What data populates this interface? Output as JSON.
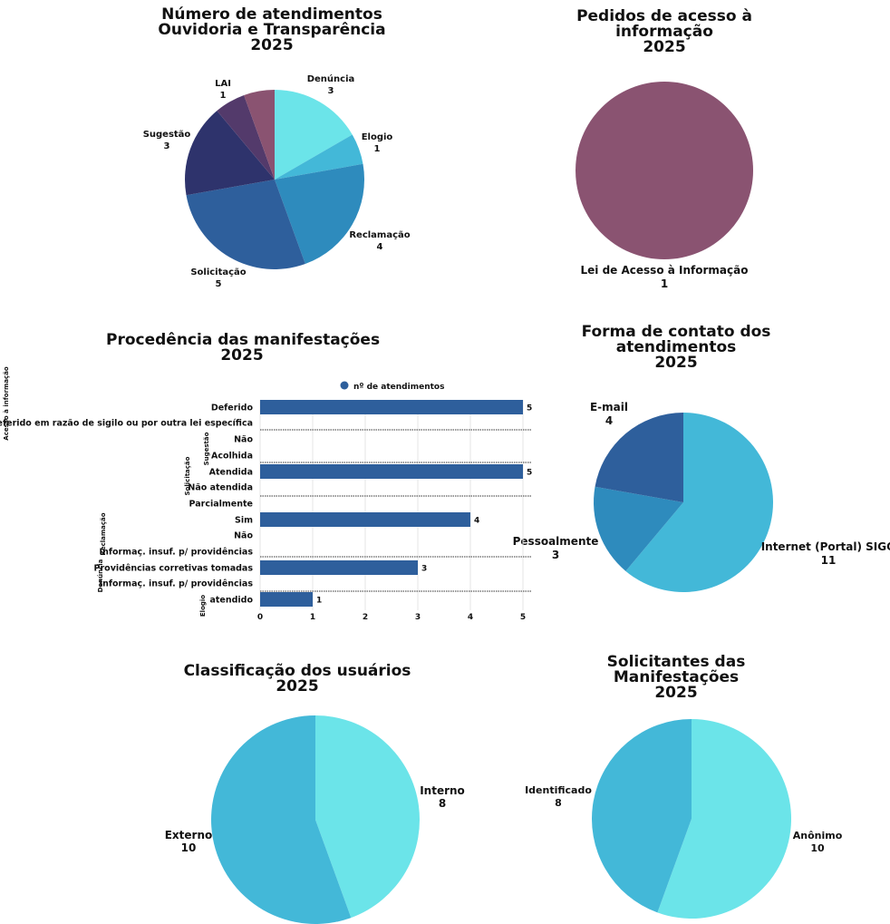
{
  "chart_data": [
    {
      "type": "pie",
      "title_lines": [
        "Número de atendimentos",
        "Ouvidoria e Transparência",
        "2025"
      ],
      "slices": [
        {
          "label": "Denúncia",
          "value": 3,
          "color": "#6be4e9"
        },
        {
          "label": "Elogio",
          "value": 1,
          "color": "#43b8d8"
        },
        {
          "label": "Reclamação",
          "value": 4,
          "color": "#2e8bbd"
        },
        {
          "label": "Solicitação",
          "value": 5,
          "color": "#2e5f9c"
        },
        {
          "label": "Sugestão",
          "value": 3,
          "color": "#2e336c"
        },
        {
          "label": "LAI",
          "value": 1,
          "color": "#533a6b"
        },
        {
          "label": "",
          "value": 1,
          "color": "#8a5371"
        }
      ]
    },
    {
      "type": "pie",
      "title_lines": [
        "Pedidos de acesso à",
        "informação",
        "2025"
      ],
      "slices": [
        {
          "label": "Lei de Acesso à Informação",
          "value": 1,
          "color": "#8a5371"
        }
      ]
    },
    {
      "type": "bar",
      "orientation": "horizontal",
      "title_lines": [
        "Procedência das manifestações",
        "2025"
      ],
      "legend": "nº de atendimentos",
      "series_color": "#2e5f9c",
      "xlim": [
        0,
        5
      ],
      "xticks": [
        0,
        1,
        2,
        3,
        4,
        5
      ],
      "groups": [
        {
          "name": "Acesso à informação",
          "rows": [
            {
              "label": "Deferido",
              "value": 5
            },
            {
              "label": "Indeferido em razão de sigilo ou por outra lei específica",
              "value": null
            }
          ]
        },
        {
          "name": "Sugestão",
          "rows": [
            {
              "label": "Não",
              "value": null
            },
            {
              "label": "Acolhida",
              "value": null
            }
          ]
        },
        {
          "name": "Solicitação",
          "rows": [
            {
              "label": "Atendida",
              "value": 5
            },
            {
              "label": "Não atendida",
              "value": null
            }
          ]
        },
        {
          "name": "Reclamação",
          "rows": [
            {
              "label": "Parcialmente",
              "value": null
            },
            {
              "label": "Sim",
              "value": 4
            },
            {
              "label": "Não",
              "value": null
            },
            {
              "label": "Informaç. insuf. p/ providências",
              "value": null
            }
          ]
        },
        {
          "name": "Denúncia",
          "rows": [
            {
              "label": "Providências corretivas tomadas",
              "value": 3
            },
            {
              "label": "Informaç. insuf. p/ providências",
              "value": null
            }
          ]
        },
        {
          "name": "Elogio",
          "rows": [
            {
              "label": "atendido",
              "value": 1
            }
          ]
        }
      ]
    },
    {
      "type": "pie",
      "title_lines": [
        "Forma de contato dos",
        "atendimentos",
        "2025"
      ],
      "slices": [
        {
          "label": "Internet (Portal) SIGO",
          "value": 11,
          "color": "#43b8d8"
        },
        {
          "label": "Pessoalmente",
          "value": 3,
          "color": "#2e8bbd"
        },
        {
          "label": "E-mail",
          "value": 4,
          "color": "#2e5f9c"
        }
      ]
    },
    {
      "type": "pie",
      "title_lines": [
        "Classificação dos usuários",
        "2025"
      ],
      "slices": [
        {
          "label": "Interno",
          "value": 8,
          "color": "#6be4e9"
        },
        {
          "label": "Externo",
          "value": 10,
          "color": "#43b8d8"
        }
      ]
    },
    {
      "type": "pie",
      "title_lines": [
        "Solicitantes das",
        "Manifestações",
        "2025"
      ],
      "slices": [
        {
          "label": "Anônimo",
          "value": 10,
          "color": "#6be4e9"
        },
        {
          "label": "Identificado",
          "value": 8,
          "color": "#43b8d8"
        }
      ]
    }
  ]
}
